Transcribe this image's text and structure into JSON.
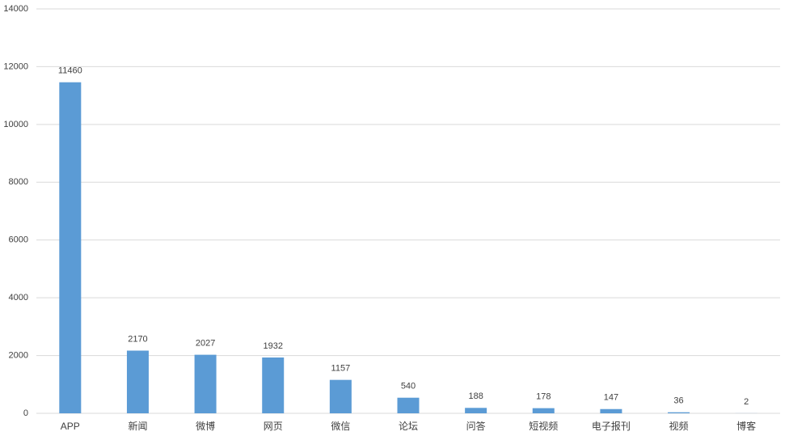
{
  "chart_data": {
    "type": "bar",
    "categories": [
      "APP",
      "新闻",
      "微博",
      "网页",
      "微信",
      "论坛",
      "问答",
      "短视频",
      "电子报刊",
      "视频",
      "博客"
    ],
    "values": [
      11460,
      2170,
      2027,
      1932,
      1157,
      540,
      188,
      178,
      147,
      36,
      2
    ],
    "color": "#5b9bd5",
    "ylim": [
      0,
      14000
    ],
    "yticks": [
      0,
      2000,
      4000,
      6000,
      8000,
      10000,
      12000,
      14000
    ],
    "grid": true
  }
}
